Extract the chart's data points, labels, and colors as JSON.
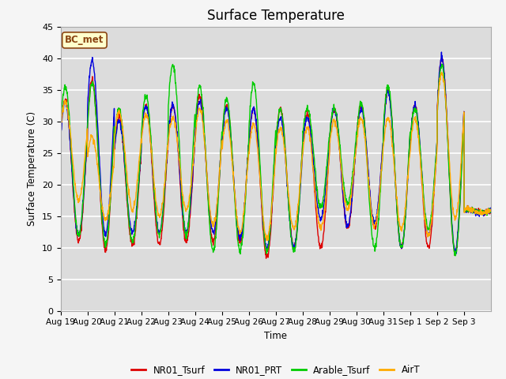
{
  "title": "Surface Temperature",
  "ylabel": "Surface Temperature (C)",
  "xlabel": "Time",
  "ylim": [
    0,
    45
  ],
  "yticks": [
    0,
    5,
    10,
    15,
    20,
    25,
    30,
    35,
    40,
    45
  ],
  "plot_bg_color": "#dcdcdc",
  "fig_bg_color": "#f5f5f5",
  "grid_color": "#ffffff",
  "annotation_text": "BC_met",
  "annotation_bg": "#ffffcc",
  "annotation_border": "#8B4513",
  "series_colors": {
    "NR01_Tsurf": "#dd0000",
    "NR01_PRT": "#0000dd",
    "Arable_Tsurf": "#00cc00",
    "AirT": "#ffaa00"
  },
  "legend_labels": [
    "NR01_Tsurf",
    "NR01_PRT",
    "Arable_Tsurf",
    "AirT"
  ],
  "x_tick_labels": [
    "Aug 19",
    "Aug 20",
    "Aug 21",
    "Aug 22",
    "Aug 23",
    "Aug 24",
    "Aug 25",
    "Aug 26",
    "Aug 27",
    "Aug 28",
    "Aug 29",
    "Aug 30",
    "Aug 31",
    "Sep 1",
    "Sep 2",
    "Sep 3"
  ],
  "num_days": 16,
  "points_per_day": 96,
  "daily_peaks": {
    "NR01_Tsurf": [
      33.5,
      36.5,
      30.5,
      32.5,
      32.5,
      34.0,
      32.5,
      32.0,
      32.0,
      31.0,
      32.0,
      32.5,
      35.0,
      32.5,
      40.0,
      16.0
    ],
    "NR01_PRT": [
      33.0,
      39.5,
      30.0,
      32.5,
      32.5,
      33.0,
      32.0,
      32.0,
      30.5,
      30.5,
      32.0,
      32.0,
      34.5,
      32.5,
      40.0,
      16.0
    ],
    "Arable_Tsurf": [
      35.5,
      36.0,
      32.0,
      34.0,
      39.0,
      35.5,
      33.5,
      36.0,
      32.0,
      32.0,
      32.0,
      33.0,
      35.5,
      32.0,
      39.0,
      16.0
    ],
    "AirT": [
      33.0,
      27.5,
      31.5,
      31.0,
      30.5,
      32.0,
      30.0,
      29.5,
      29.0,
      29.0,
      30.0,
      30.5,
      30.5,
      30.5,
      37.5,
      16.0
    ]
  },
  "daily_mins": {
    "NR01_Tsurf": [
      11.0,
      9.5,
      10.5,
      10.5,
      11.0,
      11.0,
      11.0,
      8.5,
      10.0,
      10.0,
      13.0,
      13.0,
      10.0,
      10.0,
      9.0,
      15.5
    ],
    "NR01_PRT": [
      12.0,
      12.0,
      12.5,
      12.5,
      12.5,
      12.5,
      11.5,
      10.0,
      10.0,
      14.5,
      13.5,
      14.0,
      10.0,
      12.0,
      9.5,
      15.5
    ],
    "Arable_Tsurf": [
      12.0,
      10.5,
      11.0,
      12.0,
      12.0,
      9.5,
      9.5,
      9.5,
      9.5,
      16.5,
      17.0,
      10.0,
      10.0,
      13.0,
      9.0,
      15.5
    ],
    "AirT": [
      17.5,
      14.5,
      16.0,
      15.0,
      16.0,
      13.5,
      12.5,
      11.5,
      13.0,
      13.0,
      16.0,
      13.5,
      13.0,
      12.0,
      14.5,
      15.5
    ]
  },
  "peak_hour": 14,
  "min_hour": 5
}
